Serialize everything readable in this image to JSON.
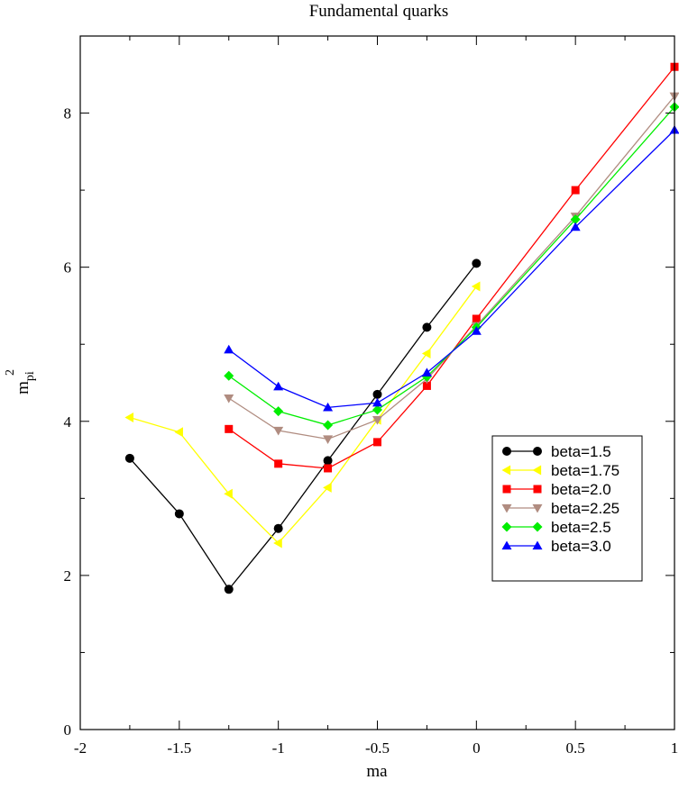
{
  "chart_data": {
    "type": "line",
    "title": "Fundamental quarks",
    "xlabel": "ma",
    "ylabel_main": "m",
    "ylabel_sub": "pi",
    "ylabel_sup": "2",
    "xlim": [
      -2,
      1
    ],
    "ylim": [
      0,
      9
    ],
    "x_major_ticks": [
      -2,
      -1.5,
      -1,
      -0.5,
      0,
      0.5,
      1
    ],
    "x_tick_labels": [
      "-2",
      "-1.5",
      "-1",
      "-0.5",
      "0",
      "0.5",
      "1"
    ],
    "y_major_ticks": [
      0,
      2,
      4,
      6,
      8
    ],
    "y_tick_labels": [
      "0",
      "2",
      "4",
      "6",
      "8"
    ],
    "y_minor_ticks": [
      1,
      3,
      5,
      7
    ],
    "x_minor_ticks": [
      -1.75,
      -1.25,
      -0.75,
      -0.25,
      0.25,
      0.75
    ],
    "legend_position": "right-middle",
    "series": [
      {
        "name": "beta=1.5",
        "color": "#000000",
        "marker": "circle",
        "x": [
          -1.75,
          -1.5,
          -1.25,
          -1.0,
          -0.75,
          -0.5,
          -0.25,
          0.0
        ],
        "y": [
          3.52,
          2.8,
          1.82,
          2.61,
          3.49,
          4.35,
          5.22,
          6.05
        ]
      },
      {
        "name": "beta=1.75",
        "color": "#ffff00",
        "marker": "triangle-left",
        "x": [
          -1.75,
          -1.5,
          -1.25,
          -1.0,
          -0.75,
          -0.5,
          -0.25,
          0.0
        ],
        "y": [
          4.05,
          3.86,
          3.06,
          2.42,
          3.14,
          4.02,
          4.88,
          5.75
        ]
      },
      {
        "name": "beta=2.0",
        "color": "#ff0000",
        "marker": "square",
        "x": [
          -1.25,
          -1.0,
          -0.75,
          -0.5,
          -0.25,
          0.0,
          0.5,
          1.0
        ],
        "y": [
          3.9,
          3.45,
          3.39,
          3.73,
          4.46,
          5.33,
          7.0,
          8.6
        ]
      },
      {
        "name": "beta=2.25",
        "color": "#b08c80",
        "marker": "triangle-down",
        "x": [
          -1.25,
          -1.0,
          -0.75,
          -0.5,
          -0.25,
          0.0,
          0.5,
          1.0
        ],
        "y": [
          4.3,
          3.88,
          3.77,
          4.02,
          4.55,
          5.24,
          6.66,
          8.22
        ]
      },
      {
        "name": "beta=2.5",
        "color": "#00ee00",
        "marker": "diamond",
        "x": [
          -1.25,
          -1.0,
          -0.75,
          -0.5,
          -0.25,
          0.0,
          0.5,
          1.0
        ],
        "y": [
          4.59,
          4.13,
          3.95,
          4.15,
          4.58,
          5.22,
          6.62,
          8.08
        ]
      },
      {
        "name": "beta=3.0",
        "color": "#0000ff",
        "marker": "triangle-up",
        "x": [
          -1.25,
          -1.0,
          -0.75,
          -0.5,
          -0.25,
          0.0,
          0.5,
          1.0
        ],
        "y": [
          4.93,
          4.45,
          4.18,
          4.24,
          4.63,
          5.17,
          6.52,
          7.78
        ]
      }
    ]
  }
}
